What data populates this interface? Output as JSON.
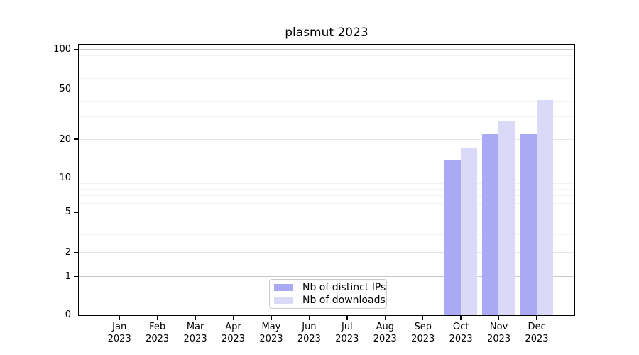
{
  "chart_data": {
    "type": "bar",
    "title": "plasmut 2023",
    "categories": [
      "Jan 2023",
      "Feb 2023",
      "Mar 2023",
      "Apr 2023",
      "May 2023",
      "Jun 2023",
      "Jul 2023",
      "Aug 2023",
      "Sep 2023",
      "Oct 2023",
      "Nov 2023",
      "Dec 2023"
    ],
    "month_labels": [
      "Jan",
      "Feb",
      "Mar",
      "Apr",
      "May",
      "Jun",
      "Jul",
      "Aug",
      "Sep",
      "Oct",
      "Nov",
      "Dec"
    ],
    "year_label": "2023",
    "series": [
      {
        "name": "Nb of distinct IPs",
        "color": "#a9a9f5",
        "values": [
          0,
          0,
          0,
          0,
          0,
          0,
          0,
          0,
          0,
          14,
          22,
          22
        ]
      },
      {
        "name": "Nb of downloads",
        "color": "#dadaf8",
        "values": [
          0,
          0,
          0,
          0,
          0,
          0,
          0,
          0,
          0,
          17,
          28,
          41
        ]
      }
    ],
    "y_ticks": [
      0,
      1,
      2,
      5,
      10,
      20,
      50,
      100
    ],
    "y_minor_ticks": [
      3,
      4,
      6,
      7,
      8,
      9,
      30,
      40,
      60,
      70,
      80,
      90
    ],
    "ylim": [
      0,
      109
    ],
    "y_scale": "log-like with 0 baseline",
    "xlabel": "",
    "ylabel": "",
    "grid": "horizontal",
    "legend_position": "lower center",
    "scale_anchors": [
      {
        "v": 0,
        "f": 1.0
      },
      {
        "v": 1,
        "f": 0.8574
      },
      {
        "v": 2,
        "f": 0.7689
      },
      {
        "v": 5,
        "f": 0.6197
      },
      {
        "v": 10,
        "f": 0.4926
      },
      {
        "v": 20,
        "f": 0.3487
      },
      {
        "v": 50,
        "f": 0.1626
      },
      {
        "v": 100,
        "f": 0.0171
      },
      {
        "v": 109,
        "f": 0.0
      }
    ],
    "colors": {
      "grid_major": "#c8c8c8",
      "grid_mid": "#e5e5e5",
      "grid_minor": "#f2f2f2",
      "axis": "#000000",
      "legend_border": "#cccccc",
      "background": "#ffffff"
    }
  }
}
